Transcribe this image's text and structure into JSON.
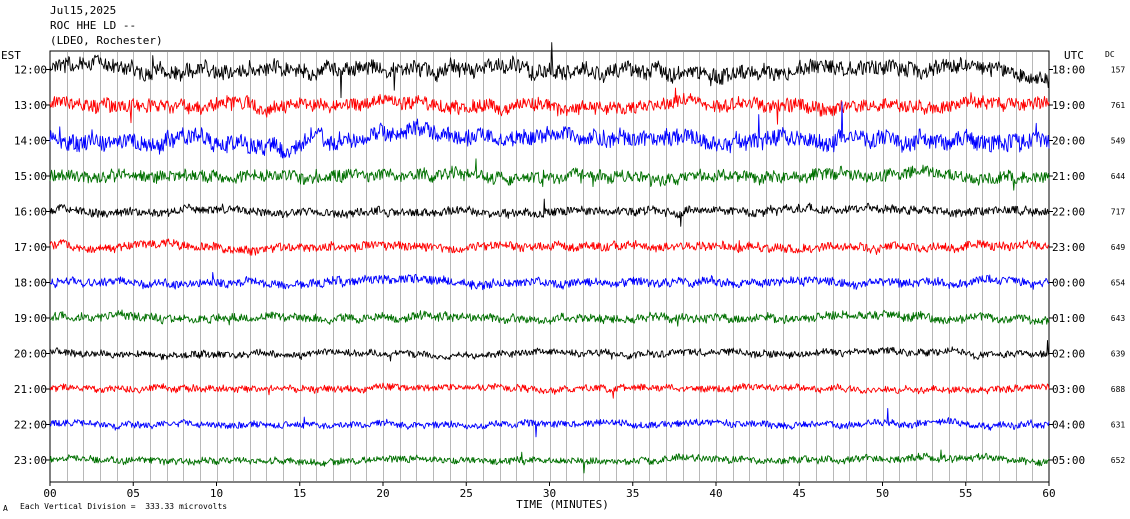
{
  "header": {
    "date": "Jul15,2025",
    "station": "ROC HHE LD --",
    "network": "(LDEO, Rochester)"
  },
  "left_axis_label": "EST",
  "right_axis_label": "UTC",
  "dc_label": "DC",
  "footer": {
    "scale_note": "Each Vertical Division =  333.33 microvolts",
    "small_mark": "A"
  },
  "chart_data": {
    "type": "line",
    "title": "Jul15,2025",
    "xlabel": "TIME (MINUTES)",
    "xlim": [
      0,
      60
    ],
    "x_ticks": [
      "00",
      "05",
      "10",
      "15",
      "20",
      "25",
      "30",
      "35",
      "40",
      "45",
      "50",
      "55",
      "60"
    ],
    "trace_colors": [
      "#000000",
      "#ff0000",
      "#0000ff",
      "#007000"
    ],
    "rows": [
      {
        "est": "12:00",
        "utc": "18:00",
        "dc": "157",
        "color": "#000000",
        "amp": 9,
        "seed": 11
      },
      {
        "est": "13:00",
        "utc": "19:00",
        "dc": "761",
        "color": "#ff0000",
        "amp": 8,
        "seed": 23
      },
      {
        "est": "14:00",
        "utc": "20:00",
        "dc": "549",
        "color": "#0000ff",
        "amp": 10,
        "seed": 37
      },
      {
        "est": "15:00",
        "utc": "21:00",
        "dc": "644",
        "color": "#007000",
        "amp": 7,
        "seed": 41
      },
      {
        "est": "16:00",
        "utc": "22:00",
        "dc": "717",
        "color": "#000000",
        "amp": 5,
        "seed": 53
      },
      {
        "est": "17:00",
        "utc": "23:00",
        "dc": "649",
        "color": "#ff0000",
        "amp": 5,
        "seed": 67
      },
      {
        "est": "18:00",
        "utc": "00:00",
        "dc": "654",
        "color": "#0000ff",
        "amp": 5,
        "seed": 71
      },
      {
        "est": "19:00",
        "utc": "01:00",
        "dc": "643",
        "color": "#007000",
        "amp": 5,
        "seed": 83
      },
      {
        "est": "20:00",
        "utc": "02:00",
        "dc": "639",
        "color": "#000000",
        "amp": 4,
        "seed": 97
      },
      {
        "est": "21:00",
        "utc": "03:00",
        "dc": "688",
        "color": "#ff0000",
        "amp": 4,
        "seed": 101
      },
      {
        "est": "22:00",
        "utc": "04:00",
        "dc": "631",
        "color": "#0000ff",
        "amp": 4,
        "seed": 113
      },
      {
        "est": "23:00",
        "utc": "05:00",
        "dc": "652",
        "color": "#007000",
        "amp": 4,
        "seed": 127
      }
    ]
  }
}
